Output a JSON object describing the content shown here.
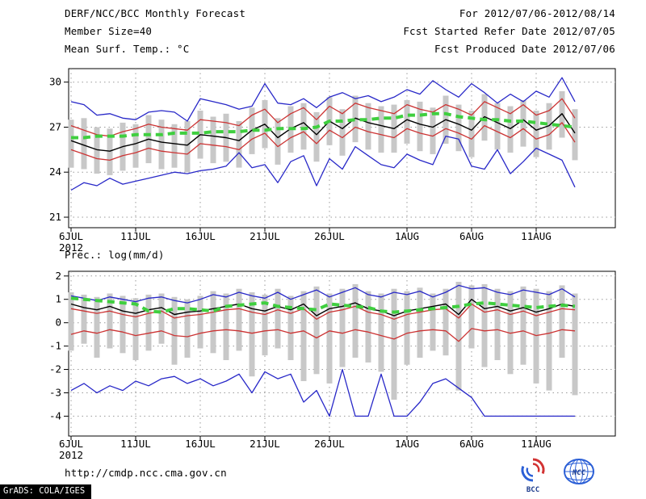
{
  "header": {
    "title": "DERF/NCC/BCC Monthly Forecast",
    "member_size": "Member Size=40",
    "temp_label": "Mean Surf. Temp.: °C",
    "for_range": "For 2012/07/06-2012/08/14",
    "fcst_started": "Fcst Started Refer Date 2012/07/05",
    "fcst_produced": "Fcst Produced Date 2012/07/06"
  },
  "prec_label": "Prec.: log(mm/d)",
  "footer": {
    "url": "http://cmdp.ncc.cma.gov.cn",
    "grads_credit": "GrADS: COLA/IGES",
    "logos": [
      {
        "name": "bcc-logo",
        "label": "BCC"
      },
      {
        "name": "ncc-logo",
        "label": "NCC"
      }
    ]
  },
  "colors": {
    "blue_line": "#2828c8",
    "red_line": "#cc3333",
    "black_line": "#000000",
    "green_dash": "#3fcf3f",
    "spread_bar": "#c8c8c8",
    "grid": "#9a9a9a"
  },
  "chart_data": [
    {
      "type": "line",
      "title": "Mean Surf. Temp.: °C",
      "xlabel": "",
      "ylabel": "",
      "x_dates": {
        "start": "2012/07/06",
        "end": "2012/08/14"
      },
      "n": 40,
      "ylim": [
        20.3,
        30.9
      ],
      "yticks": [
        21,
        24,
        27,
        30
      ],
      "grid": true,
      "legend": "none",
      "xticks": [
        {
          "i": 0,
          "label": "6JUL",
          "sublabel": "2012"
        },
        {
          "i": 5,
          "label": "11JUL"
        },
        {
          "i": 10,
          "label": "16JUL"
        },
        {
          "i": 15,
          "label": "21JUL"
        },
        {
          "i": 20,
          "label": "26JUL"
        },
        {
          "i": 26,
          "label": "1AUG"
        },
        {
          "i": 31,
          "label": "6AUG"
        },
        {
          "i": 36,
          "label": "11AUG"
        }
      ],
      "bars": {
        "name": "ensemble-spread",
        "color": "#c8c8c8",
        "top": [
          27.5,
          27.6,
          27.0,
          26.9,
          27.3,
          27.2,
          27.8,
          27.5,
          27.2,
          27.4,
          28.1,
          27.7,
          27.9,
          27.4,
          28.3,
          28.8,
          27.6,
          28.4,
          28.6,
          28.0,
          29.0,
          28.2,
          29.1,
          28.6,
          28.4,
          28.5,
          28.8,
          28.7,
          28.3,
          29.1,
          28.5,
          28.1,
          29.2,
          28.6,
          28.4,
          28.8,
          28.1,
          28.6,
          29.4,
          28.2
        ],
        "bottom": [
          24.3,
          24.2,
          23.9,
          23.8,
          24.1,
          24.3,
          24.6,
          24.2,
          24.3,
          24.0,
          24.9,
          24.6,
          24.7,
          24.3,
          25.2,
          25.6,
          24.5,
          25.3,
          25.5,
          24.7,
          25.8,
          25.1,
          26.0,
          25.5,
          25.3,
          25.3,
          25.9,
          25.4,
          25.2,
          25.9,
          25.4,
          25.0,
          26.1,
          25.5,
          25.3,
          25.7,
          25.0,
          25.5,
          26.3,
          24.8
        ]
      },
      "series": [
        {
          "name": "ensemble-max",
          "color": "#2828c8",
          "width": 1.3,
          "dash": "",
          "values": [
            28.7,
            28.5,
            27.8,
            27.9,
            27.6,
            27.5,
            28.0,
            28.1,
            28.0,
            27.4,
            28.9,
            28.7,
            28.5,
            28.2,
            28.4,
            29.9,
            28.6,
            28.5,
            28.9,
            28.3,
            29.0,
            29.3,
            28.9,
            29.1,
            28.7,
            29.0,
            29.5,
            29.2,
            30.1,
            29.5,
            29.0,
            29.9,
            29.3,
            28.6,
            29.2,
            28.7,
            29.4,
            29.0,
            30.3,
            28.7
          ]
        },
        {
          "name": "upper-quartile",
          "color": "#cc3333",
          "width": 1.3,
          "dash": "",
          "values": [
            27.1,
            26.8,
            26.5,
            26.4,
            26.7,
            26.9,
            27.2,
            27.0,
            26.9,
            26.8,
            27.5,
            27.4,
            27.3,
            27.1,
            27.8,
            28.2,
            27.3,
            27.9,
            28.3,
            27.5,
            28.4,
            27.9,
            28.6,
            28.3,
            28.1,
            27.9,
            28.5,
            28.2,
            28.0,
            28.5,
            28.2,
            27.8,
            28.7,
            28.3,
            27.9,
            28.5,
            27.8,
            28.1,
            28.9,
            27.6
          ]
        },
        {
          "name": "ensemble-mean",
          "color": "#000000",
          "width": 1.4,
          "dash": "",
          "values": [
            26.1,
            25.8,
            25.5,
            25.4,
            25.7,
            25.9,
            26.2,
            26.0,
            25.9,
            25.8,
            26.5,
            26.4,
            26.3,
            26.1,
            26.8,
            27.2,
            26.3,
            26.9,
            27.3,
            26.5,
            27.4,
            26.9,
            27.6,
            27.3,
            27.1,
            26.9,
            27.5,
            27.2,
            27.0,
            27.5,
            27.2,
            26.8,
            27.7,
            27.3,
            26.9,
            27.5,
            26.8,
            27.1,
            27.9,
            26.6
          ]
        },
        {
          "name": "lower-quartile",
          "color": "#cc3333",
          "width": 1.3,
          "dash": "",
          "values": [
            25.5,
            25.2,
            24.9,
            24.8,
            25.1,
            25.3,
            25.6,
            25.4,
            25.3,
            25.2,
            25.9,
            25.8,
            25.7,
            25.5,
            26.2,
            26.6,
            25.7,
            26.3,
            26.7,
            25.9,
            26.8,
            26.3,
            27.0,
            26.7,
            26.5,
            26.3,
            26.9,
            26.6,
            26.4,
            26.9,
            26.6,
            26.2,
            27.1,
            26.7,
            26.3,
            26.9,
            26.2,
            26.5,
            27.3,
            26.0
          ]
        },
        {
          "name": "ensemble-min",
          "color": "#2828c8",
          "width": 1.3,
          "dash": "",
          "values": [
            22.8,
            23.3,
            23.1,
            23.6,
            23.2,
            23.4,
            23.6,
            23.8,
            24.0,
            23.9,
            24.1,
            24.2,
            24.4,
            25.3,
            24.3,
            24.5,
            23.3,
            24.7,
            25.1,
            23.1,
            24.9,
            24.2,
            25.7,
            25.1,
            24.5,
            24.3,
            25.2,
            24.8,
            24.5,
            26.4,
            26.2,
            24.4,
            24.2,
            25.5,
            23.9,
            24.7,
            25.6,
            25.2,
            24.8,
            23.0
          ]
        },
        {
          "name": "climatology",
          "color": "#3fcf3f",
          "width": 4,
          "dash": "9 6",
          "values": [
            26.3,
            26.3,
            26.4,
            26.4,
            26.4,
            26.5,
            26.5,
            26.5,
            26.6,
            26.6,
            26.6,
            26.7,
            26.7,
            26.7,
            26.8,
            26.8,
            26.9,
            26.9,
            26.9,
            27.0,
            27.4,
            27.4,
            27.5,
            27.5,
            27.6,
            27.6,
            27.8,
            27.8,
            27.9,
            27.9,
            27.7,
            27.6,
            27.5,
            27.5,
            27.4,
            27.4,
            27.3,
            27.2,
            27.1,
            27.0
          ]
        }
      ]
    },
    {
      "type": "line",
      "title": "Prec.: log(mm/d)",
      "xlabel": "",
      "ylabel": "",
      "x_dates": {
        "start": "2012/07/06",
        "end": "2012/08/14"
      },
      "n": 40,
      "ylim": [
        -4.85,
        2.2
      ],
      "yticks": [
        -4,
        -3,
        -2,
        -1,
        0,
        1,
        2
      ],
      "grid": true,
      "legend": "none",
      "xticks": [
        {
          "i": 0,
          "label": "6JUL",
          "sublabel": "2012"
        },
        {
          "i": 5,
          "label": "11JUL"
        },
        {
          "i": 10,
          "label": "16JUL"
        },
        {
          "i": 15,
          "label": "21JUL"
        },
        {
          "i": 20,
          "label": "26JUL"
        },
        {
          "i": 26,
          "label": "1AUG"
        },
        {
          "i": 31,
          "label": "6AUG"
        },
        {
          "i": 36,
          "label": "11AUG"
        }
      ],
      "bars": {
        "name": "ensemble-spread",
        "color": "#c8c8c8",
        "top": [
          1.3,
          1.2,
          1.1,
          1.25,
          1.15,
          1.05,
          1.2,
          1.25,
          1.1,
          1.0,
          1.15,
          1.35,
          1.25,
          1.45,
          1.3,
          1.2,
          1.45,
          1.15,
          1.35,
          1.55,
          1.25,
          1.45,
          1.65,
          1.35,
          1.25,
          1.45,
          1.35,
          1.5,
          1.25,
          1.45,
          1.75,
          1.6,
          1.65,
          1.45,
          1.35,
          1.55,
          1.45,
          1.35,
          1.6,
          1.25
        ],
        "bottom": [
          -1.2,
          -0.9,
          -1.5,
          -1.1,
          -1.3,
          -1.6,
          -1.2,
          -0.9,
          -1.8,
          -1.5,
          -1.1,
          -1.3,
          -1.6,
          -1.2,
          -2.3,
          -1.4,
          -1.1,
          -1.6,
          -2.5,
          -2.2,
          -2.6,
          -1.9,
          -1.5,
          -1.7,
          -2.1,
          -3.3,
          -1.8,
          -1.5,
          -1.2,
          -1.4,
          -2.9,
          -1.1,
          -1.9,
          -1.6,
          -2.2,
          -1.8,
          -2.6,
          -2.9,
          -1.5,
          -3.1
        ]
      },
      "series": [
        {
          "name": "ensemble-max",
          "color": "#2828c8",
          "width": 1.3,
          "dash": "",
          "values": [
            1.15,
            1.05,
            0.95,
            1.1,
            1.0,
            0.9,
            1.05,
            1.1,
            0.95,
            0.85,
            1.0,
            1.2,
            1.1,
            1.3,
            1.15,
            1.05,
            1.3,
            1.0,
            1.2,
            1.4,
            1.1,
            1.3,
            1.5,
            1.2,
            1.1,
            1.3,
            1.2,
            1.35,
            1.1,
            1.3,
            1.6,
            1.45,
            1.5,
            1.3,
            1.2,
            1.4,
            1.3,
            1.2,
            1.45,
            1.1
          ]
        },
        {
          "name": "upper-quartile",
          "color": "#cc3333",
          "width": 1.3,
          "dash": "",
          "values": [
            0.6,
            0.5,
            0.4,
            0.5,
            0.35,
            0.25,
            0.4,
            0.5,
            0.2,
            0.3,
            0.35,
            0.45,
            0.55,
            0.6,
            0.45,
            0.35,
            0.55,
            0.4,
            0.6,
            0.15,
            0.45,
            0.55,
            0.7,
            0.45,
            0.35,
            0.15,
            0.35,
            0.45,
            0.55,
            0.6,
            0.2,
            0.8,
            0.45,
            0.55,
            0.35,
            0.5,
            0.3,
            0.45,
            0.6,
            0.55
          ]
        },
        {
          "name": "ensemble-mean",
          "color": "#000000",
          "width": 1.4,
          "dash": "",
          "values": [
            0.8,
            0.65,
            0.55,
            0.7,
            0.5,
            0.4,
            0.55,
            0.65,
            0.35,
            0.45,
            0.5,
            0.6,
            0.7,
            0.8,
            0.6,
            0.5,
            0.7,
            0.55,
            0.8,
            0.3,
            0.6,
            0.7,
            0.85,
            0.6,
            0.5,
            0.3,
            0.5,
            0.6,
            0.7,
            0.8,
            0.35,
            1.0,
            0.6,
            0.7,
            0.5,
            0.65,
            0.45,
            0.6,
            0.8,
            0.7
          ]
        },
        {
          "name": "lower-quartile",
          "color": "#cc3333",
          "width": 1.3,
          "dash": "",
          "values": [
            -0.5,
            -0.35,
            -0.45,
            -0.3,
            -0.4,
            -0.55,
            -0.45,
            -0.35,
            -0.55,
            -0.6,
            -0.45,
            -0.35,
            -0.3,
            -0.35,
            -0.45,
            -0.35,
            -0.3,
            -0.45,
            -0.35,
            -0.65,
            -0.35,
            -0.45,
            -0.3,
            -0.4,
            -0.55,
            -0.7,
            -0.45,
            -0.35,
            -0.3,
            -0.35,
            -0.8,
            -0.25,
            -0.35,
            -0.3,
            -0.45,
            -0.35,
            -0.55,
            -0.45,
            -0.3,
            -0.35
          ]
        },
        {
          "name": "ensemble-min",
          "color": "#2828c8",
          "width": 1.3,
          "dash": "",
          "values": [
            -2.9,
            -2.6,
            -3.0,
            -2.7,
            -2.9,
            -2.5,
            -2.7,
            -2.4,
            -2.3,
            -2.6,
            -2.4,
            -2.7,
            -2.5,
            -2.2,
            -3.0,
            -2.1,
            -2.4,
            -2.2,
            -3.4,
            -2.9,
            -4.0,
            -2.0,
            -4.0,
            -4.0,
            -2.2,
            -4.0,
            -4.0,
            -3.4,
            -2.6,
            -2.4,
            -2.8,
            -3.2,
            -4.0,
            -4.0,
            -4.0,
            -4.0,
            -4.0,
            -4.0,
            -4.0,
            -4.0
          ]
        },
        {
          "name": "climatology",
          "color": "#3fcf3f",
          "width": 4,
          "dash": "9 6",
          "values": [
            1.05,
            1.0,
            0.95,
            0.9,
            0.85,
            0.8,
            0.5,
            0.45,
            0.6,
            0.6,
            0.55,
            0.5,
            0.7,
            0.75,
            0.8,
            0.85,
            0.7,
            0.65,
            0.6,
            0.55,
            0.8,
            0.75,
            0.7,
            0.65,
            0.5,
            0.45,
            0.5,
            0.55,
            0.6,
            0.65,
            0.7,
            0.8,
            0.85,
            0.8,
            0.75,
            0.7,
            0.65,
            0.7,
            0.75,
            0.7
          ]
        }
      ]
    }
  ]
}
